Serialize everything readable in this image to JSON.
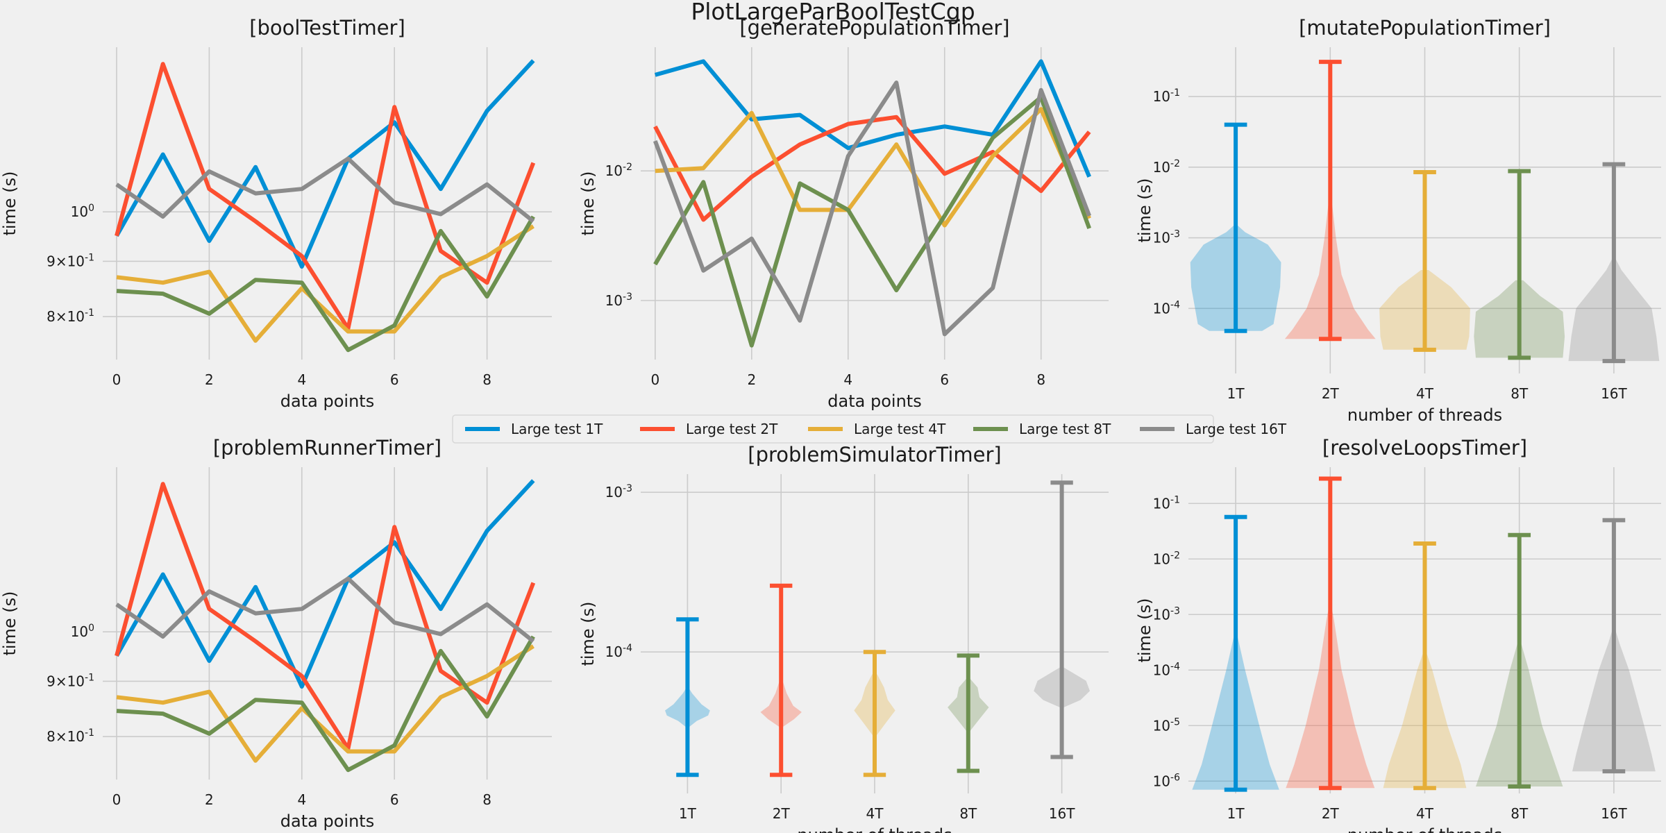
{
  "figure_title": "PlotLargeParBoolTestCgp",
  "legend": {
    "entries": [
      {
        "label": "Large test 1T",
        "color": "#008fd5"
      },
      {
        "label": "Large test 2T",
        "color": "#fc4f30"
      },
      {
        "label": "Large test 4T",
        "color": "#e5ae38"
      },
      {
        "label": "Large test 8T",
        "color": "#6d904f"
      },
      {
        "label": "Large test 16T",
        "color": "#8b8b8b"
      }
    ]
  },
  "chart_data": [
    {
      "type": "line",
      "title": "[boolTestTimer]",
      "xlabel": "data points",
      "ylabel": "time (s)",
      "yscale": "log",
      "ylim": [
        0.73,
        1.42
      ],
      "xlim": [
        -0.3,
        9.4
      ],
      "xticks": [
        0,
        2,
        4,
        6,
        8
      ],
      "xtick_labels": [
        "0",
        "2",
        "4",
        "6",
        "8"
      ],
      "yticks": [
        {
          "v": 1.0,
          "label": "10^0"
        },
        {
          "v": 0.9,
          "label": "9×10^-1"
        },
        {
          "v": 0.8,
          "label": "8×10^-1"
        }
      ],
      "grid": true,
      "x": [
        0,
        1,
        2,
        3,
        4,
        5,
        6,
        7,
        8,
        9
      ],
      "series": [
        {
          "name": "Large test 1T",
          "color": "#008fd5",
          "values": [
            0.95,
            1.13,
            0.94,
            1.1,
            0.89,
            1.12,
            1.21,
            1.05,
            1.24,
            1.38
          ]
        },
        {
          "name": "Large test 2T",
          "color": "#fc4f30",
          "values": [
            0.95,
            1.37,
            1.05,
            0.98,
            0.91,
            0.78,
            1.25,
            0.92,
            0.86,
            1.11
          ]
        },
        {
          "name": "Large test 4T",
          "color": "#e5ae38",
          "values": [
            0.87,
            0.86,
            0.88,
            0.76,
            0.85,
            0.775,
            0.775,
            0.87,
            0.91,
            0.97
          ]
        },
        {
          "name": "Large test 8T",
          "color": "#6d904f",
          "values": [
            0.845,
            0.84,
            0.805,
            0.865,
            0.86,
            0.745,
            0.785,
            0.96,
            0.835,
            0.99
          ]
        },
        {
          "name": "Large test 16T",
          "color": "#8b8b8b",
          "values": [
            1.06,
            0.99,
            1.09,
            1.04,
            1.05,
            1.12,
            1.02,
            0.995,
            1.06,
            0.98
          ]
        }
      ]
    },
    {
      "type": "line",
      "title": "[generatePopulationTimer]",
      "xlabel": "data points",
      "ylabel": "time (s)",
      "yscale": "log",
      "ylim": [
        0.00035,
        0.09
      ],
      "xlim": [
        -0.3,
        9.4
      ],
      "xticks": [
        0,
        2,
        4,
        6,
        8
      ],
      "xtick_labels": [
        "0",
        "2",
        "4",
        "6",
        "8"
      ],
      "yticks": [
        {
          "v": 0.01,
          "label": "10^-2"
        },
        {
          "v": 0.001,
          "label": "10^-3"
        }
      ],
      "grid": true,
      "x": [
        0,
        1,
        2,
        3,
        4,
        5,
        6,
        7,
        8,
        9
      ],
      "series": [
        {
          "name": "Large test 1T",
          "color": "#008fd5",
          "values": [
            0.055,
            0.07,
            0.025,
            0.027,
            0.015,
            0.019,
            0.022,
            0.019,
            0.07,
            0.009
          ]
        },
        {
          "name": "Large test 2T",
          "color": "#fc4f30",
          "values": [
            0.022,
            0.0042,
            0.009,
            0.016,
            0.023,
            0.026,
            0.0095,
            0.014,
            0.007,
            0.02
          ]
        },
        {
          "name": "Large test 4T",
          "color": "#e5ae38",
          "values": [
            0.01,
            0.0105,
            0.028,
            0.005,
            0.005,
            0.016,
            0.0038,
            0.013,
            0.03,
            0.0043
          ]
        },
        {
          "name": "Large test 8T",
          "color": "#6d904f",
          "values": [
            0.0019,
            0.0082,
            0.00045,
            0.008,
            0.005,
            0.0012,
            0.0045,
            0.018,
            0.037,
            0.0036
          ]
        },
        {
          "name": "Large test 16T",
          "color": "#8b8b8b",
          "values": [
            0.017,
            0.0017,
            0.003,
            0.0007,
            0.013,
            0.048,
            0.00055,
            0.00125,
            0.042,
            0.0045
          ]
        }
      ]
    },
    {
      "type": "violin",
      "title": "[mutatePopulationTimer]",
      "xlabel": "number of threads",
      "ylabel": "time (s)",
      "yscale": "log",
      "ylim": [
        1.2e-05,
        0.5
      ],
      "yticks": [
        {
          "v": 0.1,
          "label": "10^-1"
        },
        {
          "v": 0.01,
          "label": "10^-2"
        },
        {
          "v": 0.001,
          "label": "10^-3"
        },
        {
          "v": 0.0001,
          "label": "10^-4"
        }
      ],
      "grid": true,
      "categories": [
        "1T",
        "2T",
        "4T",
        "8T",
        "16T"
      ],
      "series": [
        {
          "color": "#008fd5",
          "min": 4.8e-05,
          "max": 0.04,
          "shape": [
            [
              4.8e-05,
              0.28
            ],
            [
              6e-05,
              0.4
            ],
            [
              0.0002,
              0.47
            ],
            [
              0.00045,
              0.48
            ],
            [
              0.0008,
              0.34
            ],
            [
              0.0012,
              0.1
            ],
            [
              0.0015,
              0.02
            ]
          ]
        },
        {
          "color": "#fc4f30",
          "min": 3.7e-05,
          "max": 0.31,
          "shape": [
            [
              3.7e-05,
              0.48
            ],
            [
              5e-05,
              0.4
            ],
            [
              0.0001,
              0.25
            ],
            [
              0.0003,
              0.12
            ],
            [
              0.001,
              0.06
            ],
            [
              0.003,
              0.02
            ]
          ]
        },
        {
          "color": "#e5ae38",
          "min": 2.6e-05,
          "max": 0.0085,
          "shape": [
            [
              2.6e-05,
              0.44
            ],
            [
              4e-05,
              0.47
            ],
            [
              0.0001,
              0.48
            ],
            [
              0.0002,
              0.28
            ],
            [
              0.00035,
              0.04
            ]
          ]
        },
        {
          "color": "#6d904f",
          "min": 2e-05,
          "max": 0.0088,
          "shape": [
            [
              2e-05,
              0.46
            ],
            [
              4e-05,
              0.48
            ],
            [
              9e-05,
              0.46
            ],
            [
              0.00015,
              0.22
            ],
            [
              0.00025,
              0.04
            ]
          ]
        },
        {
          "color": "#8b8b8b",
          "min": 1.8e-05,
          "max": 0.011,
          "shape": [
            [
              1.8e-05,
              0.48
            ],
            [
              4e-05,
              0.45
            ],
            [
              0.0001,
              0.4
            ],
            [
              0.0002,
              0.22
            ],
            [
              0.00035,
              0.08
            ],
            [
              0.0005,
              0.02
            ]
          ]
        }
      ]
    },
    {
      "type": "line",
      "title": "[problemRunnerTimer]",
      "xlabel": "data points",
      "ylabel": "time (s)",
      "yscale": "log",
      "ylim": [
        0.73,
        1.42
      ],
      "xlim": [
        -0.3,
        9.4
      ],
      "xticks": [
        0,
        2,
        4,
        6,
        8
      ],
      "xtick_labels": [
        "0",
        "2",
        "4",
        "6",
        "8"
      ],
      "yticks": [
        {
          "v": 1.0,
          "label": "10^0"
        },
        {
          "v": 0.9,
          "label": "9×10^-1"
        },
        {
          "v": 0.8,
          "label": "8×10^-1"
        }
      ],
      "grid": true,
      "x": [
        0,
        1,
        2,
        3,
        4,
        5,
        6,
        7,
        8,
        9
      ],
      "series": [
        {
          "name": "Large test 1T",
          "color": "#008fd5",
          "values": [
            0.95,
            1.13,
            0.94,
            1.1,
            0.89,
            1.12,
            1.21,
            1.05,
            1.24,
            1.38
          ]
        },
        {
          "name": "Large test 2T",
          "color": "#fc4f30",
          "values": [
            0.95,
            1.37,
            1.05,
            0.98,
            0.91,
            0.78,
            1.25,
            0.92,
            0.86,
            1.11
          ]
        },
        {
          "name": "Large test 4T",
          "color": "#e5ae38",
          "values": [
            0.87,
            0.86,
            0.88,
            0.76,
            0.85,
            0.775,
            0.775,
            0.87,
            0.91,
            0.97
          ]
        },
        {
          "name": "Large test 8T",
          "color": "#6d904f",
          "values": [
            0.845,
            0.84,
            0.805,
            0.865,
            0.86,
            0.745,
            0.785,
            0.96,
            0.835,
            0.99
          ]
        },
        {
          "name": "Large test 16T",
          "color": "#8b8b8b",
          "values": [
            1.06,
            0.99,
            1.09,
            1.04,
            1.05,
            1.12,
            1.02,
            0.995,
            1.06,
            0.98
          ]
        }
      ]
    },
    {
      "type": "violin",
      "title": "[problemSimulatorTimer]",
      "xlabel": "number of threads",
      "ylabel": "time (s)",
      "yscale": "log",
      "ylim": [
        1.3e-05,
        0.0013
      ],
      "yticks": [
        {
          "v": 0.001,
          "label": "10^-3"
        },
        {
          "v": 0.0001,
          "label": "10^-4"
        }
      ],
      "grid": true,
      "categories": [
        "1T",
        "2T",
        "4T",
        "8T",
        "16T"
      ],
      "series": [
        {
          "color": "#008fd5",
          "min": 1.7e-05,
          "max": 0.00016,
          "shape": [
            [
              3.4e-05,
              0.02
            ],
            [
              3.7e-05,
              0.1
            ],
            [
              4e-05,
              0.22
            ],
            [
              4.3e-05,
              0.24
            ],
            [
              4.7e-05,
              0.15
            ],
            [
              5.5e-05,
              0.05
            ],
            [
              6e-05,
              0.01
            ]
          ]
        },
        {
          "color": "#fc4f30",
          "min": 1.7e-05,
          "max": 0.00026,
          "shape": [
            [
              3.4e-05,
              0.02
            ],
            [
              3.8e-05,
              0.14
            ],
            [
              4.2e-05,
              0.22
            ],
            [
              4.6e-05,
              0.13
            ],
            [
              5.5e-05,
              0.06
            ],
            [
              6.5e-05,
              0.02
            ]
          ]
        },
        {
          "color": "#e5ae38",
          "min": 1.7e-05,
          "max": 0.0001,
          "shape": [
            [
              3e-05,
              0.02
            ],
            [
              3.6e-05,
              0.12
            ],
            [
              4.3e-05,
              0.22
            ],
            [
              5e-05,
              0.14
            ],
            [
              6e-05,
              0.1
            ],
            [
              7e-05,
              0.04
            ],
            [
              7.5e-05,
              0.01
            ]
          ]
        },
        {
          "color": "#6d904f",
          "min": 1.8e-05,
          "max": 9.5e-05,
          "shape": [
            [
              3.2e-05,
              0.02
            ],
            [
              3.8e-05,
              0.12
            ],
            [
              4.5e-05,
              0.22
            ],
            [
              5.2e-05,
              0.12
            ],
            [
              6e-05,
              0.1
            ],
            [
              6.8e-05,
              0.02
            ]
          ]
        },
        {
          "color": "#8b8b8b",
          "min": 2.2e-05,
          "max": 0.00115,
          "shape": [
            [
              4.5e-05,
              0.02
            ],
            [
              5e-05,
              0.2
            ],
            [
              5.7e-05,
              0.3
            ],
            [
              6.6e-05,
              0.26
            ],
            [
              7.5e-05,
              0.1
            ],
            [
              8e-05,
              0.02
            ]
          ]
        }
      ]
    },
    {
      "type": "violin",
      "title": "[resolveLoopsTimer]",
      "xlabel": "number of threads",
      "ylabel": "time (s)",
      "yscale": "log",
      "ylim": [
        6e-07,
        0.45
      ],
      "yticks": [
        {
          "v": 0.1,
          "label": "10^-1"
        },
        {
          "v": 0.01,
          "label": "10^-2"
        },
        {
          "v": 0.001,
          "label": "10^-3"
        },
        {
          "v": 0.0001,
          "label": "10^-4"
        },
        {
          "v": 1e-05,
          "label": "10^-5"
        },
        {
          "v": 1e-06,
          "label": "10^-6"
        }
      ],
      "grid": true,
      "categories": [
        "1T",
        "2T",
        "4T",
        "8T",
        "16T"
      ],
      "series": [
        {
          "color": "#008fd5",
          "min": 7e-07,
          "max": 0.057,
          "shape": [
            [
              7e-07,
              0.46
            ],
            [
              2e-06,
              0.36
            ],
            [
              1e-05,
              0.25
            ],
            [
              0.0001,
              0.1
            ],
            [
              0.0004,
              0.02
            ]
          ]
        },
        {
          "color": "#fc4f30",
          "min": 7.5e-07,
          "max": 0.28,
          "shape": [
            [
              7.5e-07,
              0.47
            ],
            [
              2e-06,
              0.38
            ],
            [
              1e-05,
              0.26
            ],
            [
              0.0001,
              0.12
            ],
            [
              0.0008,
              0.04
            ],
            [
              0.0015,
              0.01
            ]
          ]
        },
        {
          "color": "#e5ae38",
          "min": 7.5e-07,
          "max": 0.019,
          "shape": [
            [
              7.5e-07,
              0.44
            ],
            [
              2e-06,
              0.38
            ],
            [
              1e-05,
              0.24
            ],
            [
              0.0001,
              0.08
            ],
            [
              0.0002,
              0.02
            ]
          ]
        },
        {
          "color": "#6d904f",
          "min": 8e-07,
          "max": 0.027,
          "shape": [
            [
              8e-07,
              0.46
            ],
            [
              2e-06,
              0.38
            ],
            [
              1e-05,
              0.24
            ],
            [
              0.0001,
              0.1
            ],
            [
              0.0003,
              0.02
            ]
          ]
        },
        {
          "color": "#8b8b8b",
          "min": 1.5e-06,
          "max": 0.05,
          "shape": [
            [
              1.5e-06,
              0.44
            ],
            [
              3e-06,
              0.4
            ],
            [
              1e-05,
              0.32
            ],
            [
              0.0001,
              0.16
            ],
            [
              0.0003,
              0.06
            ],
            [
              0.0005,
              0.02
            ]
          ]
        }
      ]
    }
  ]
}
